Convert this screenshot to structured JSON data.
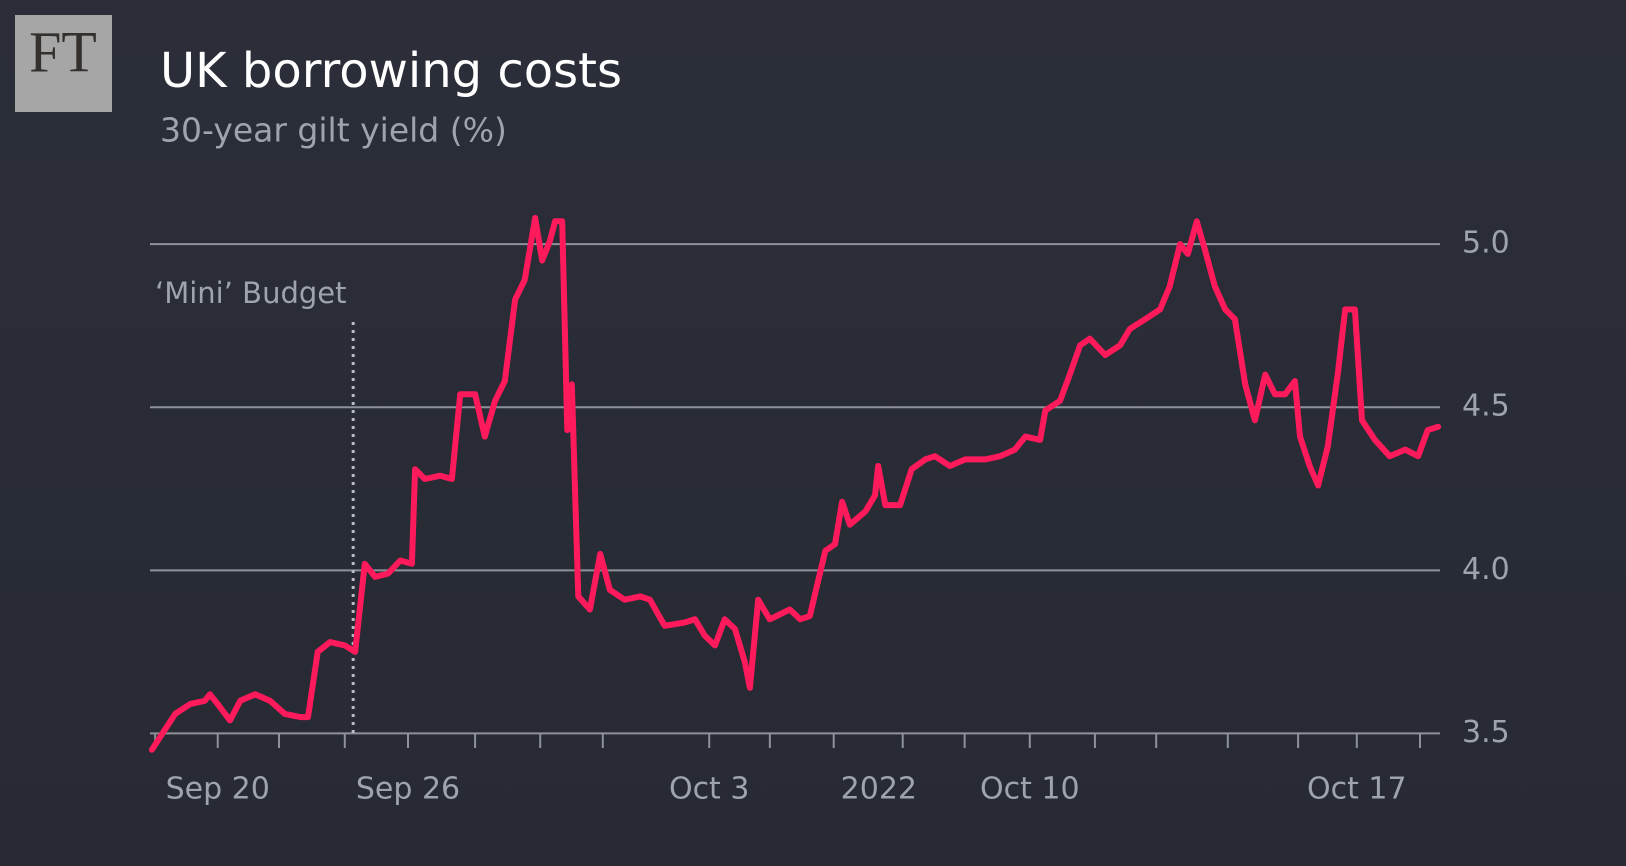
{
  "logo": "FT",
  "chart_data": {
    "type": "line",
    "title": "UK borrowing costs",
    "subtitle": "30-year gilt yield (%)",
    "annotation": {
      "text": "‘Mini’ Budget",
      "x": 3.15
    },
    "year_label": {
      "text": "2022",
      "x": 11.3
    },
    "xlim": [
      0,
      20
    ],
    "xticks": [
      {
        "value": 1.05,
        "label": "Sep 20"
      },
      {
        "value": 4.0,
        "label": "Sep 26"
      },
      {
        "value": 8.67,
        "label": "Oct 3"
      },
      {
        "value": 13.64,
        "label": "Oct 10"
      },
      {
        "value": 18.71,
        "label": "Oct 17"
      }
    ],
    "xminor_ticks": [
      0.08,
      2.0,
      3.02,
      5.04,
      6.05,
      7.02,
      9.61,
      10.6,
      11.67,
      12.63,
      14.65,
      15.6,
      16.71,
      17.8,
      19.69
    ],
    "ylim": [
      3.44,
      5.12
    ],
    "yticks": [
      {
        "value": 3.5,
        "label": "3.5"
      },
      {
        "value": 4,
        "label": "4.0"
      },
      {
        "value": 4.5,
        "label": "4.5"
      },
      {
        "value": 5,
        "label": "5.0"
      }
    ],
    "grid": true,
    "series": [
      {
        "name": "30-year gilt yield",
        "color": "#ff1a5c",
        "x": [
          0.03,
          0.16,
          0.39,
          0.62,
          0.85,
          0.93,
          1.05,
          1.24,
          1.4,
          1.63,
          1.86,
          2.09,
          2.33,
          2.45,
          2.6,
          2.79,
          3.02,
          3.18,
          3.33,
          3.49,
          3.69,
          3.88,
          4.06,
          4.11,
          4.26,
          4.5,
          4.68,
          4.81,
          5.04,
          5.19,
          5.35,
          5.5,
          5.66,
          5.81,
          5.97,
          6.08,
          6.2,
          6.28,
          6.39,
          6.47,
          6.54,
          6.64,
          6.82,
          6.98,
          7.13,
          7.36,
          7.6,
          7.75,
          7.98,
          8.29,
          8.45,
          8.6,
          8.76,
          8.91,
          9.07,
          9.22,
          9.3,
          9.43,
          9.61,
          9.92,
          10.08,
          10.23,
          10.47,
          10.62,
          10.73,
          10.85,
          11.09,
          11.24,
          11.29,
          11.4,
          11.63,
          11.81,
          12.02,
          12.17,
          12.4,
          12.64,
          12.95,
          13.18,
          13.41,
          13.57,
          13.8,
          13.88,
          14.11,
          14.26,
          14.42,
          14.57,
          14.81,
          15.04,
          15.19,
          15.43,
          15.66,
          15.81,
          15.97,
          16.09,
          16.23,
          16.36,
          16.51,
          16.67,
          16.82,
          16.98,
          17.13,
          17.29,
          17.44,
          17.6,
          17.75,
          17.83,
          17.98,
          18.11,
          18.26,
          18.42,
          18.53,
          18.68,
          18.79,
          18.99,
          19.22,
          19.46,
          19.66,
          19.81,
          19.97
        ],
        "values": [
          3.45,
          3.49,
          3.56,
          3.59,
          3.6,
          3.62,
          3.59,
          3.54,
          3.6,
          3.62,
          3.6,
          3.56,
          3.55,
          3.55,
          3.75,
          3.78,
          3.77,
          3.75,
          4.02,
          3.98,
          3.99,
          4.03,
          4.02,
          4.31,
          4.28,
          4.29,
          4.28,
          4.54,
          4.54,
          4.41,
          4.52,
          4.58,
          4.83,
          4.89,
          5.08,
          4.95,
          5.01,
          5.07,
          5.07,
          4.43,
          4.57,
          3.92,
          3.88,
          4.05,
          3.94,
          3.91,
          3.92,
          3.91,
          3.83,
          3.84,
          3.85,
          3.8,
          3.77,
          3.85,
          3.82,
          3.72,
          3.64,
          3.91,
          3.85,
          3.88,
          3.85,
          3.86,
          4.06,
          4.08,
          4.21,
          4.14,
          4.18,
          4.23,
          4.32,
          4.2,
          4.2,
          4.31,
          4.34,
          4.35,
          4.32,
          4.34,
          4.34,
          4.35,
          4.37,
          4.41,
          4.4,
          4.49,
          4.52,
          4.6,
          4.69,
          4.71,
          4.66,
          4.69,
          4.74,
          4.77,
          4.8,
          4.87,
          5.0,
          4.97,
          5.07,
          4.98,
          4.87,
          4.8,
          4.77,
          4.57,
          4.46,
          4.6,
          4.54,
          4.54,
          4.58,
          4.41,
          4.32,
          4.26,
          4.38,
          4.61,
          4.8,
          4.8,
          4.46,
          4.4,
          4.35,
          4.37,
          4.35,
          4.43,
          4.44
        ]
      }
    ]
  }
}
